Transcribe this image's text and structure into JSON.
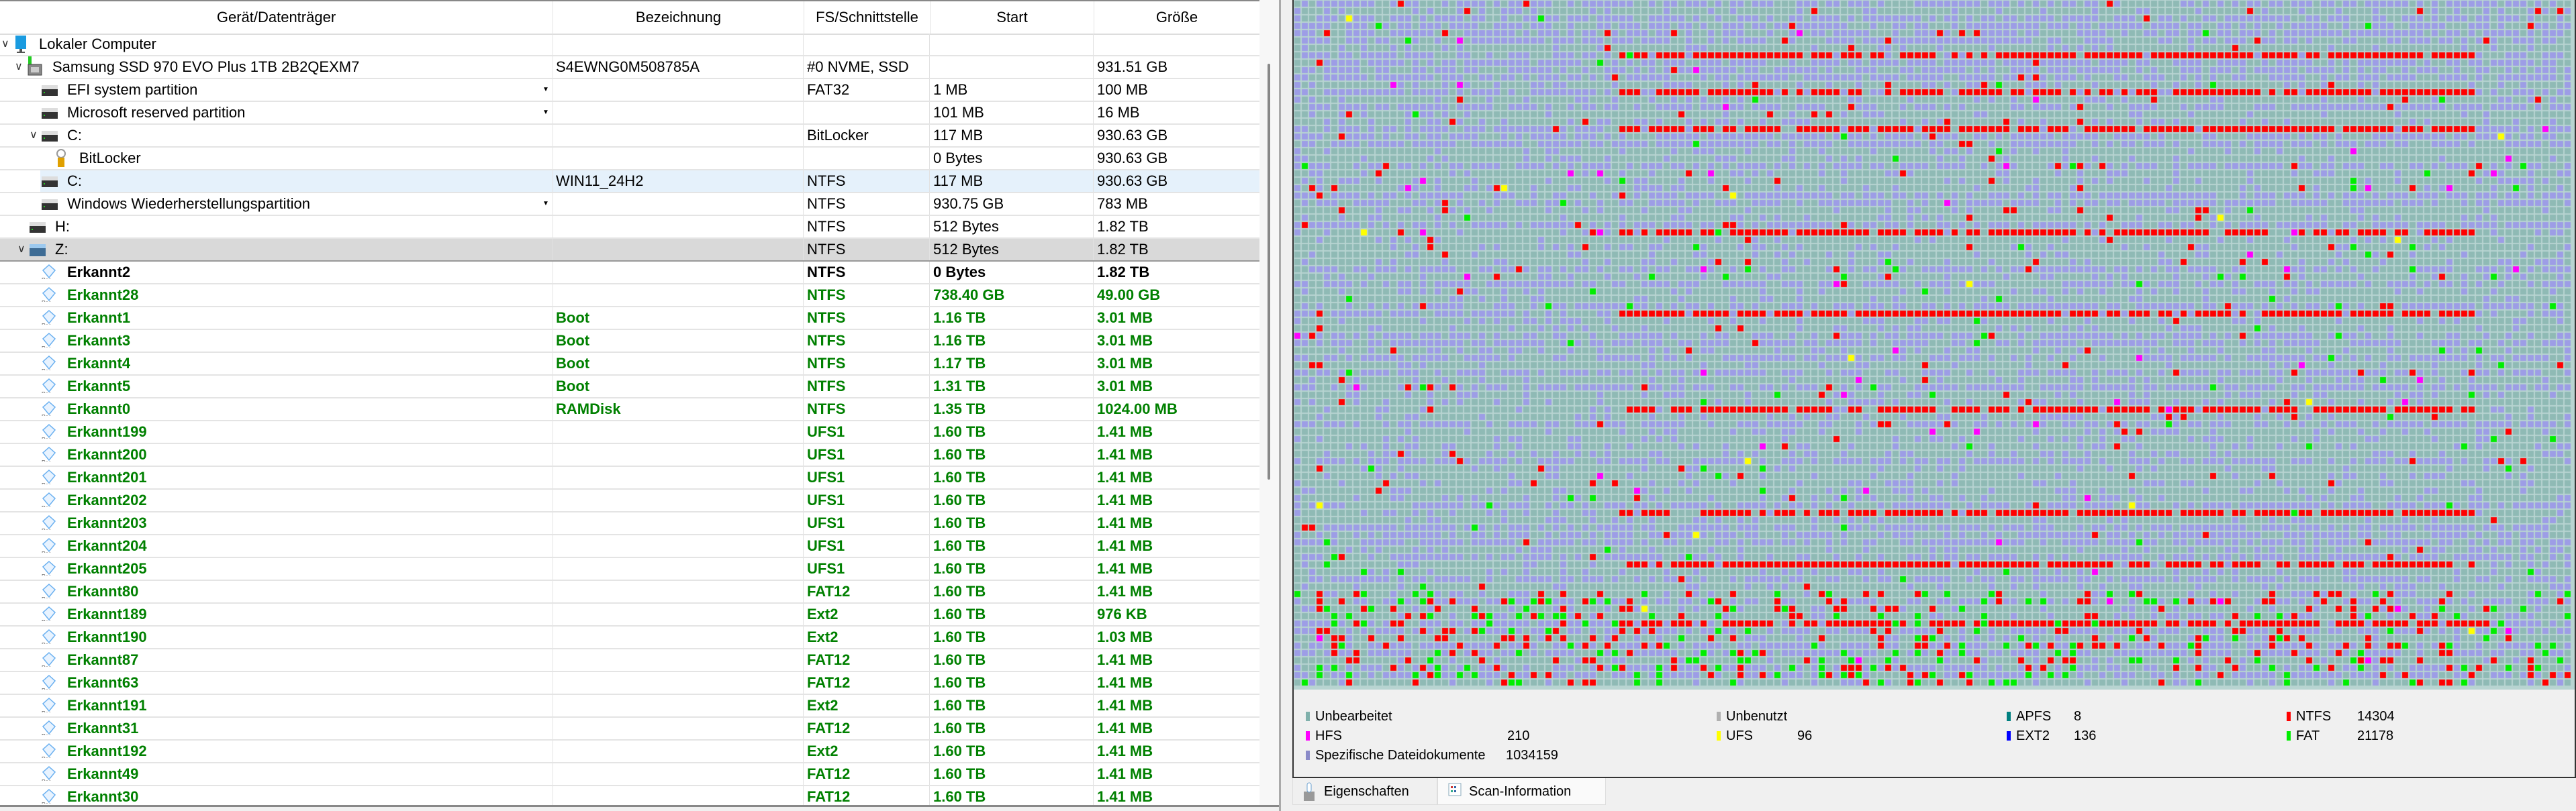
{
  "tree": {
    "columns": [
      "Gerät/Datenträger",
      "Bezeichnung",
      "FS/Schnittstelle",
      "Start",
      "Größe"
    ],
    "rows": [
      {
        "name": "Lokaler Computer",
        "label": "",
        "fs": "",
        "start": "",
        "size": "",
        "level": 0,
        "icon": "computer-icon",
        "expander": true,
        "style": "normal"
      },
      {
        "name": "Samsung SSD 970 EVO Plus 1TB 2B2QEXM7",
        "label": "S4EWNG0M508785A",
        "fs": "#0 NVME, SSD",
        "start": "",
        "size": "931.51 GB",
        "level": 1,
        "icon": "ssd-icon",
        "expander": true,
        "style": "normal"
      },
      {
        "name": "EFI system partition",
        "label": "",
        "fs": "FAT32",
        "start": "1 MB",
        "size": "100 MB",
        "level": 2,
        "icon": "partition-icon",
        "dropdown": true,
        "style": "normal"
      },
      {
        "name": "Microsoft reserved partition",
        "label": "",
        "fs": "",
        "start": "101 MB",
        "size": "16 MB",
        "level": 2,
        "icon": "partition-icon",
        "dropdown": true,
        "style": "normal"
      },
      {
        "name": "C:",
        "label": "",
        "fs": "BitLocker",
        "start": "117 MB",
        "size": "930.63 GB",
        "level": 2,
        "icon": "partition-icon",
        "expander": true,
        "style": "normal"
      },
      {
        "name": "BitLocker",
        "label": "",
        "fs": "",
        "start": "0 Bytes",
        "size": "930.63 GB",
        "level": 3,
        "icon": "lock-icon",
        "style": "normal"
      },
      {
        "name": "C:",
        "label": "WIN11_24H2",
        "fs": "NTFS",
        "start": "117 MB",
        "size": "930.63 GB",
        "level": 2,
        "icon": "partition-icon",
        "style": "selected"
      },
      {
        "name": "Windows Wiederherstellungspartition",
        "label": "",
        "fs": "NTFS",
        "start": "930.75 GB",
        "size": "783 MB",
        "level": 2,
        "icon": "partition-icon",
        "dropdown": true,
        "style": "normal"
      },
      {
        "name": "H:",
        "label": "",
        "fs": "NTFS",
        "start": "512 Bytes",
        "size": "1.82 TB",
        "level": 1,
        "icon": "partition-icon",
        "style": "normal"
      },
      {
        "name": "Z:",
        "label": "",
        "fs": "NTFS",
        "start": "512 Bytes",
        "size": "1.82 TB",
        "level": 1,
        "icon": "disk-icon",
        "expander": true,
        "style": "highlight"
      },
      {
        "name": "Erkannt2",
        "label": "",
        "fs": "NTFS",
        "start": "0 Bytes",
        "size": "1.82 TB",
        "level": 2,
        "icon": "recovered-icon",
        "style": "bold"
      },
      {
        "name": "Erkannt28",
        "label": "",
        "fs": "NTFS",
        "start": "738.40 GB",
        "size": "49.00 GB",
        "level": 2,
        "icon": "recovered-icon",
        "style": "green"
      },
      {
        "name": "Erkannt1",
        "label": "Boot",
        "fs": "NTFS",
        "start": "1.16 TB",
        "size": "3.01 MB",
        "level": 2,
        "icon": "recovered-icon",
        "style": "green"
      },
      {
        "name": "Erkannt3",
        "label": "Boot",
        "fs": "NTFS",
        "start": "1.16 TB",
        "size": "3.01 MB",
        "level": 2,
        "icon": "recovered-icon",
        "style": "green"
      },
      {
        "name": "Erkannt4",
        "label": "Boot",
        "fs": "NTFS",
        "start": "1.17 TB",
        "size": "3.01 MB",
        "level": 2,
        "icon": "recovered-icon",
        "style": "green"
      },
      {
        "name": "Erkannt5",
        "label": "Boot",
        "fs": "NTFS",
        "start": "1.31 TB",
        "size": "3.01 MB",
        "level": 2,
        "icon": "recovered-icon",
        "style": "green"
      },
      {
        "name": "Erkannt0",
        "label": "RAMDisk",
        "fs": "NTFS",
        "start": "1.35 TB",
        "size": "1024.00 MB",
        "level": 2,
        "icon": "recovered-icon",
        "style": "green"
      },
      {
        "name": "Erkannt199",
        "label": "",
        "fs": "UFS1",
        "start": "1.60 TB",
        "size": "1.41 MB",
        "level": 2,
        "icon": "recovered-icon",
        "style": "green"
      },
      {
        "name": "Erkannt200",
        "label": "",
        "fs": "UFS1",
        "start": "1.60 TB",
        "size": "1.41 MB",
        "level": 2,
        "icon": "recovered-icon",
        "style": "green"
      },
      {
        "name": "Erkannt201",
        "label": "",
        "fs": "UFS1",
        "start": "1.60 TB",
        "size": "1.41 MB",
        "level": 2,
        "icon": "recovered-icon",
        "style": "green"
      },
      {
        "name": "Erkannt202",
        "label": "",
        "fs": "UFS1",
        "start": "1.60 TB",
        "size": "1.41 MB",
        "level": 2,
        "icon": "recovered-icon",
        "style": "green"
      },
      {
        "name": "Erkannt203",
        "label": "",
        "fs": "UFS1",
        "start": "1.60 TB",
        "size": "1.41 MB",
        "level": 2,
        "icon": "recovered-icon",
        "style": "green"
      },
      {
        "name": "Erkannt204",
        "label": "",
        "fs": "UFS1",
        "start": "1.60 TB",
        "size": "1.41 MB",
        "level": 2,
        "icon": "recovered-icon",
        "style": "green"
      },
      {
        "name": "Erkannt205",
        "label": "",
        "fs": "UFS1",
        "start": "1.60 TB",
        "size": "1.41 MB",
        "level": 2,
        "icon": "recovered-icon",
        "style": "green"
      },
      {
        "name": "Erkannt80",
        "label": "",
        "fs": "FAT12",
        "start": "1.60 TB",
        "size": "1.41 MB",
        "level": 2,
        "icon": "recovered-icon",
        "style": "green"
      },
      {
        "name": "Erkannt189",
        "label": "",
        "fs": "Ext2",
        "start": "1.60 TB",
        "size": "976 KB",
        "level": 2,
        "icon": "recovered-icon",
        "style": "green"
      },
      {
        "name": "Erkannt190",
        "label": "",
        "fs": "Ext2",
        "start": "1.60 TB",
        "size": "1.03 MB",
        "level": 2,
        "icon": "recovered-icon",
        "style": "green"
      },
      {
        "name": "Erkannt87",
        "label": "",
        "fs": "FAT12",
        "start": "1.60 TB",
        "size": "1.41 MB",
        "level": 2,
        "icon": "recovered-icon",
        "style": "green"
      },
      {
        "name": "Erkannt63",
        "label": "",
        "fs": "FAT12",
        "start": "1.60 TB",
        "size": "1.41 MB",
        "level": 2,
        "icon": "recovered-icon",
        "style": "green"
      },
      {
        "name": "Erkannt191",
        "label": "",
        "fs": "Ext2",
        "start": "1.60 TB",
        "size": "1.41 MB",
        "level": 2,
        "icon": "recovered-icon",
        "style": "green"
      },
      {
        "name": "Erkannt31",
        "label": "",
        "fs": "FAT12",
        "start": "1.60 TB",
        "size": "1.41 MB",
        "level": 2,
        "icon": "recovered-icon",
        "style": "green"
      },
      {
        "name": "Erkannt192",
        "label": "",
        "fs": "Ext2",
        "start": "1.60 TB",
        "size": "1.41 MB",
        "level": 2,
        "icon": "recovered-icon",
        "style": "green"
      },
      {
        "name": "Erkannt49",
        "label": "",
        "fs": "FAT12",
        "start": "1.60 TB",
        "size": "1.41 MB",
        "level": 2,
        "icon": "recovered-icon",
        "style": "green"
      },
      {
        "name": "Erkannt30",
        "label": "",
        "fs": "FAT12",
        "start": "1.60 TB",
        "size": "1.41 MB",
        "level": 2,
        "icon": "recovered-icon",
        "style": "green"
      }
    ]
  },
  "scan_map": {
    "colors": {
      "unprocessed": "#8fbab5",
      "specific": "#9d9de6",
      "ntfs": "#ff0000",
      "fat": "#00ee00",
      "hfs": "#ff00ff",
      "ufs": "#ffff00",
      "ext2": "#0000ff",
      "apfs": "#008080"
    }
  },
  "legend": [
    {
      "label": "Unbearbeitet",
      "count": "",
      "color": "#7fb0ab"
    },
    {
      "label": "Unbenutzt",
      "count": "",
      "color": "#b0b0b0"
    },
    {
      "label": "APFS",
      "count": "8",
      "color": "#008080"
    },
    {
      "label": "NTFS",
      "count": "14304",
      "color": "#ff0000"
    },
    {
      "label": "HFS",
      "count": "210",
      "color": "#ff00ff"
    },
    {
      "label": "UFS",
      "count": "96",
      "color": "#ffff00"
    },
    {
      "label": "EXT2",
      "count": "136",
      "color": "#0000ff"
    },
    {
      "label": "FAT",
      "count": "21178",
      "color": "#00ee00"
    },
    {
      "label": "Spezifische Dateidokumente",
      "count": "1034159",
      "color": "#8a8ac8"
    }
  ],
  "tabs": [
    {
      "label": "Eigenschaften",
      "icon": "properties-icon",
      "active": false
    },
    {
      "label": "Scan-Information",
      "icon": "scan-info-icon",
      "active": true
    }
  ]
}
